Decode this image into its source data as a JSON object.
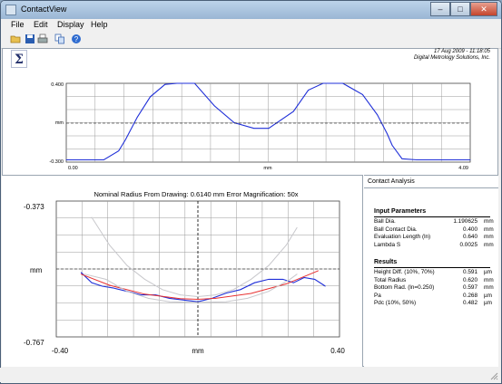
{
  "window": {
    "title": "ContactView",
    "minimize": "–",
    "maximize": "□",
    "close": "✕"
  },
  "menu": [
    "File",
    "Edit",
    "Display",
    "Help"
  ],
  "toolbar": {
    "icons": [
      "open-folder-icon",
      "save-icon",
      "print-icon",
      "copy-icon",
      "help-icon"
    ]
  },
  "header": {
    "datetime": "17 Aug 2009 - 11:18:05",
    "company": "Digital Metrology Solutions, Inc."
  },
  "top_chart": {
    "y_tick_labels": [
      "0.400",
      "mm",
      "-0.300"
    ],
    "x_tick_labels": [
      "0.00",
      "mm",
      "4.09"
    ]
  },
  "chart_data": [
    {
      "type": "line",
      "xlim": [
        0.0,
        4.09
      ],
      "ylim": [
        -0.3,
        0.4
      ],
      "grid": true,
      "series": [
        {
          "color": "#1f2fd8",
          "x": [
            0.0,
            0.38,
            0.53,
            0.6,
            0.72,
            0.85,
            1.0,
            1.12,
            1.3,
            1.5,
            1.7,
            1.9,
            2.05,
            2.3,
            2.45,
            2.6,
            2.8,
            3.0,
            3.15,
            3.25,
            3.3,
            3.4,
            3.55,
            4.09
          ],
          "y": [
            -0.28,
            -0.28,
            -0.2,
            -0.1,
            0.1,
            0.28,
            0.39,
            0.4,
            0.4,
            0.2,
            0.05,
            0.0,
            0.0,
            0.15,
            0.34,
            0.4,
            0.4,
            0.3,
            0.12,
            -0.05,
            -0.15,
            -0.27,
            -0.28,
            -0.28
          ]
        }
      ]
    },
    {
      "type": "line",
      "title": "Nominal Radius From Drawing: 0.6140 mm      Error Magnification: 50x",
      "xlabel": "mm",
      "ylabel": "mm",
      "x_tick_labels": [
        "-0.40",
        "0.40"
      ],
      "y_tick_labels": [
        "-0.373",
        "-0.767"
      ],
      "xlim": [
        -0.4,
        0.4
      ],
      "ylim": [
        -0.767,
        -0.373
      ],
      "grid": true,
      "series": [
        {
          "color": "#1f2fd8",
          "x": [
            -0.33,
            -0.3,
            -0.27,
            -0.24,
            -0.2,
            -0.16,
            -0.12,
            -0.08,
            -0.04,
            0.0,
            0.04,
            0.08,
            0.12,
            0.16,
            0.2,
            0.24,
            0.27,
            0.3,
            0.33,
            0.36
          ],
          "y": [
            -0.58,
            -0.61,
            -0.62,
            -0.625,
            -0.635,
            -0.645,
            -0.645,
            -0.655,
            -0.66,
            -0.665,
            -0.655,
            -0.64,
            -0.63,
            -0.61,
            -0.6,
            -0.6,
            -0.61,
            -0.595,
            -0.6,
            -0.62
          ]
        },
        {
          "color": "#e83030",
          "x": [
            -0.33,
            -0.25,
            -0.15,
            -0.05,
            0.0,
            0.05,
            0.15,
            0.25,
            0.34
          ],
          "y": [
            -0.585,
            -0.617,
            -0.643,
            -0.656,
            -0.658,
            -0.655,
            -0.641,
            -0.613,
            -0.575
          ]
        },
        {
          "color": "#c8c8cc",
          "x": [
            -0.3,
            -0.25,
            -0.2,
            -0.15,
            -0.1,
            -0.05,
            0.0,
            0.05,
            0.1,
            0.15,
            0.2,
            0.25,
            0.28
          ],
          "y": [
            -0.42,
            -0.5,
            -0.56,
            -0.6,
            -0.63,
            -0.645,
            -0.65,
            -0.645,
            -0.63,
            -0.6,
            -0.56,
            -0.5,
            -0.45
          ]
        },
        {
          "color": "#c8c8cc",
          "x": [
            -0.32,
            -0.26,
            -0.2,
            -0.14,
            -0.08,
            0.0,
            0.08,
            0.14,
            0.2,
            0.26,
            0.28
          ],
          "y": [
            -0.585,
            -0.6,
            -0.635,
            -0.655,
            -0.665,
            -0.667,
            -0.665,
            -0.655,
            -0.635,
            -0.6,
            -0.585
          ]
        }
      ]
    }
  ],
  "analysis": {
    "panel_title": "Contact Analysis",
    "input_title": "Input Parameters",
    "inputs": [
      {
        "label": "Ball Dia.",
        "value": "1.190625",
        "unit": "mm"
      },
      {
        "label": "Ball Contact Dia.",
        "value": "0.400",
        "unit": "mm"
      },
      {
        "label": "Evaluation Length (ln)",
        "value": "0.640",
        "unit": "mm"
      },
      {
        "label": "Lambda S",
        "value": "0.0025",
        "unit": "mm"
      }
    ],
    "results_title": "Results",
    "results": [
      {
        "label": "Height Diff. (10%, 70%)",
        "value": "0.591",
        "unit": "µm"
      },
      {
        "label": "Total Radius",
        "value": "0.620",
        "unit": "mm"
      },
      {
        "label": "Bottom Rad. (ln=0.250)",
        "value": "0.597",
        "unit": "mm"
      },
      {
        "label": "Pa",
        "value": "0.268",
        "unit": "µm"
      },
      {
        "label": "Pdc (10%, 50%)",
        "value": "0.482",
        "unit": "µm"
      }
    ]
  }
}
